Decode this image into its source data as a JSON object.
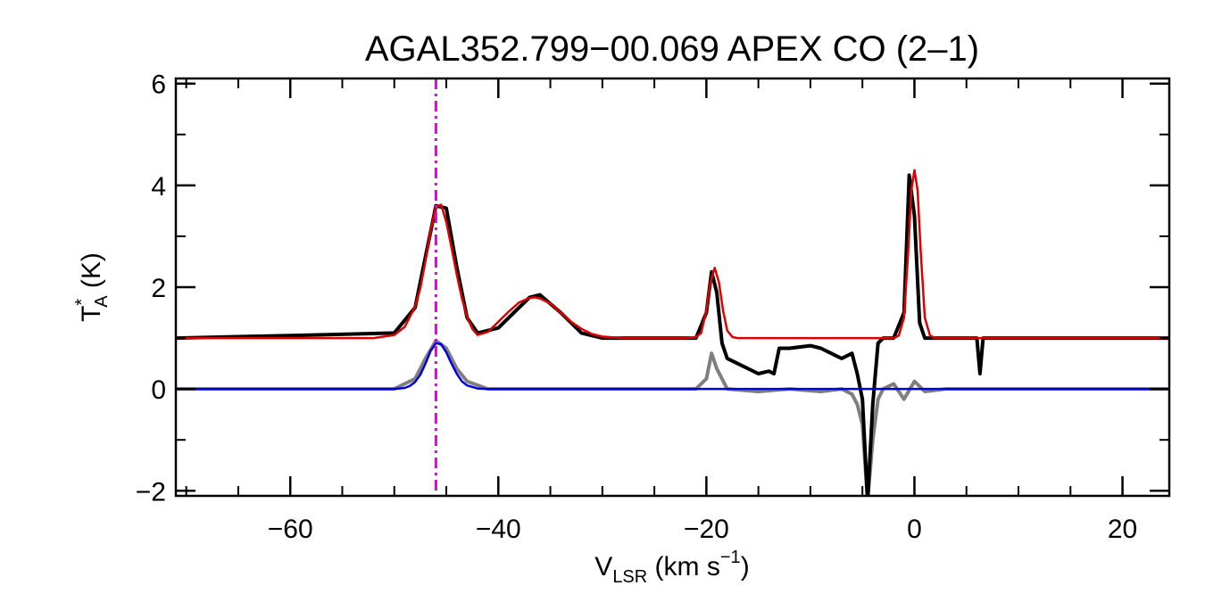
{
  "chart_data": {
    "type": "line",
    "title": "AGAL352.799−00.069  APEX CO (2–1)",
    "xlabel": {
      "main": "V",
      "sub": "LSR",
      "tail": " (km s",
      "sup": "−1",
      "close": ")"
    },
    "ylabel": {
      "main": "T",
      "sup": "*",
      "sub": "A",
      "tail": " (K)"
    },
    "xlim": [
      -71,
      24.5
    ],
    "ylim": [
      -2.1,
      6.1
    ],
    "xticks": [
      -60,
      -40,
      -20,
      0,
      20
    ],
    "xtick_labels": [
      "−60",
      "−40",
      "−20",
      "0",
      "20"
    ],
    "yticks": [
      -2,
      0,
      2,
      4,
      6
    ],
    "ytick_labels": [
      "−2",
      "0",
      "2",
      "4",
      "6"
    ],
    "grid": false,
    "vline": {
      "x": -46,
      "color": "#e000e0",
      "style": "dash-dot"
    },
    "series": [
      {
        "role": "observed-spectrum",
        "color": "#000000",
        "x": [
          -71,
          -60,
          -50,
          -48,
          -47,
          -46,
          -45,
          -44,
          -43,
          -42,
          -40,
          -38,
          -37,
          -36,
          -34,
          -32,
          -30,
          -25,
          -21,
          -20,
          -19.5,
          -19,
          -18.5,
          -18,
          -17,
          -16,
          -15,
          -14,
          -13.5,
          -13,
          -12,
          -10,
          -9,
          -8,
          -7,
          -6,
          -5.5,
          -5,
          -4.5,
          -4,
          -3.5,
          -3,
          -2,
          -1,
          -0.5,
          0,
          0.5,
          1,
          3,
          6,
          6.3,
          6.6,
          7,
          10,
          15,
          24.5
        ],
        "y": [
          1.0,
          1.05,
          1.1,
          1.6,
          2.6,
          3.6,
          3.55,
          2.4,
          1.4,
          1.1,
          1.2,
          1.6,
          1.8,
          1.85,
          1.5,
          1.1,
          1.0,
          1.0,
          1.0,
          1.5,
          2.3,
          1.9,
          0.9,
          0.6,
          0.5,
          0.4,
          0.3,
          0.35,
          0.3,
          0.8,
          0.8,
          0.85,
          0.8,
          0.7,
          0.6,
          0.7,
          0.3,
          -0.2,
          -2.2,
          -0.3,
          0.9,
          1.0,
          1.0,
          1.5,
          4.2,
          3.4,
          1.3,
          1.0,
          1.0,
          1.0,
          0.3,
          1.0,
          1.0,
          1.0,
          1.0,
          1.0
        ]
      },
      {
        "role": "residual-spectrum",
        "color": "#7f7f7f",
        "x": [
          -71,
          -60,
          -50,
          -48,
          -47,
          -46,
          -45,
          -44,
          -43,
          -41,
          -35,
          -25,
          -21,
          -20,
          -19.5,
          -19,
          -18,
          -15,
          -12,
          -9,
          -7,
          -6,
          -5.5,
          -5,
          -4.5,
          -4,
          -3.5,
          -3,
          -2,
          -1,
          0,
          1,
          3,
          6,
          10,
          24.5
        ],
        "y": [
          0.0,
          0.0,
          0.0,
          0.2,
          0.6,
          0.95,
          0.8,
          0.4,
          0.15,
          0.0,
          0.0,
          0.0,
          0.0,
          0.2,
          0.7,
          0.4,
          0.0,
          -0.05,
          0.0,
          -0.05,
          0.0,
          -0.1,
          -0.3,
          -0.7,
          -2.2,
          -1.0,
          -0.2,
          0.0,
          0.1,
          -0.2,
          0.15,
          -0.05,
          0.0,
          0.0,
          0.0,
          0.0
        ]
      },
      {
        "role": "total-fit",
        "color": "#e00000",
        "x": [
          -71,
          -52,
          -50,
          -49,
          -48,
          -47.5,
          -47,
          -46.5,
          -46,
          -45.5,
          -45,
          -44.5,
          -44,
          -43.5,
          -43,
          -42.5,
          -42,
          -41,
          -40,
          -39,
          -38,
          -37,
          -36.5,
          -36,
          -35,
          -34,
          -33,
          -32,
          -31,
          -30,
          -28,
          -22,
          -21,
          -20.5,
          -20,
          -19.6,
          -19.2,
          -18.8,
          -18.4,
          -18,
          -17.5,
          -17,
          -5,
          -2,
          -1.5,
          -1,
          -0.6,
          -0.3,
          0,
          0.3,
          0.6,
          1,
          1.5,
          2,
          24.5
        ],
        "y": [
          1.0,
          1.0,
          1.06,
          1.22,
          1.62,
          1.98,
          2.52,
          3.12,
          3.58,
          3.62,
          3.28,
          2.78,
          2.25,
          1.78,
          1.42,
          1.18,
          1.06,
          1.12,
          1.32,
          1.52,
          1.7,
          1.79,
          1.8,
          1.78,
          1.68,
          1.5,
          1.32,
          1.18,
          1.08,
          1.03,
          1.0,
          1.0,
          1.02,
          1.1,
          1.55,
          2.1,
          2.38,
          2.1,
          1.55,
          1.15,
          1.02,
          1.0,
          1.0,
          1.0,
          1.05,
          1.4,
          2.7,
          3.9,
          4.3,
          3.9,
          2.7,
          1.4,
          1.05,
          1.0,
          1.0
        ]
      },
      {
        "role": "component-fit",
        "color": "#0000e0",
        "x": [
          -71,
          -50,
          -49,
          -48.5,
          -48,
          -47.5,
          -47,
          -46.5,
          -46,
          -45.5,
          -45,
          -44.5,
          -44,
          -43.5,
          -43,
          -42,
          -41,
          24.5
        ],
        "y": [
          0.0,
          0.0,
          0.02,
          0.06,
          0.14,
          0.28,
          0.5,
          0.75,
          0.9,
          0.88,
          0.72,
          0.5,
          0.3,
          0.15,
          0.07,
          0.01,
          0.0,
          0.0
        ]
      }
    ]
  }
}
